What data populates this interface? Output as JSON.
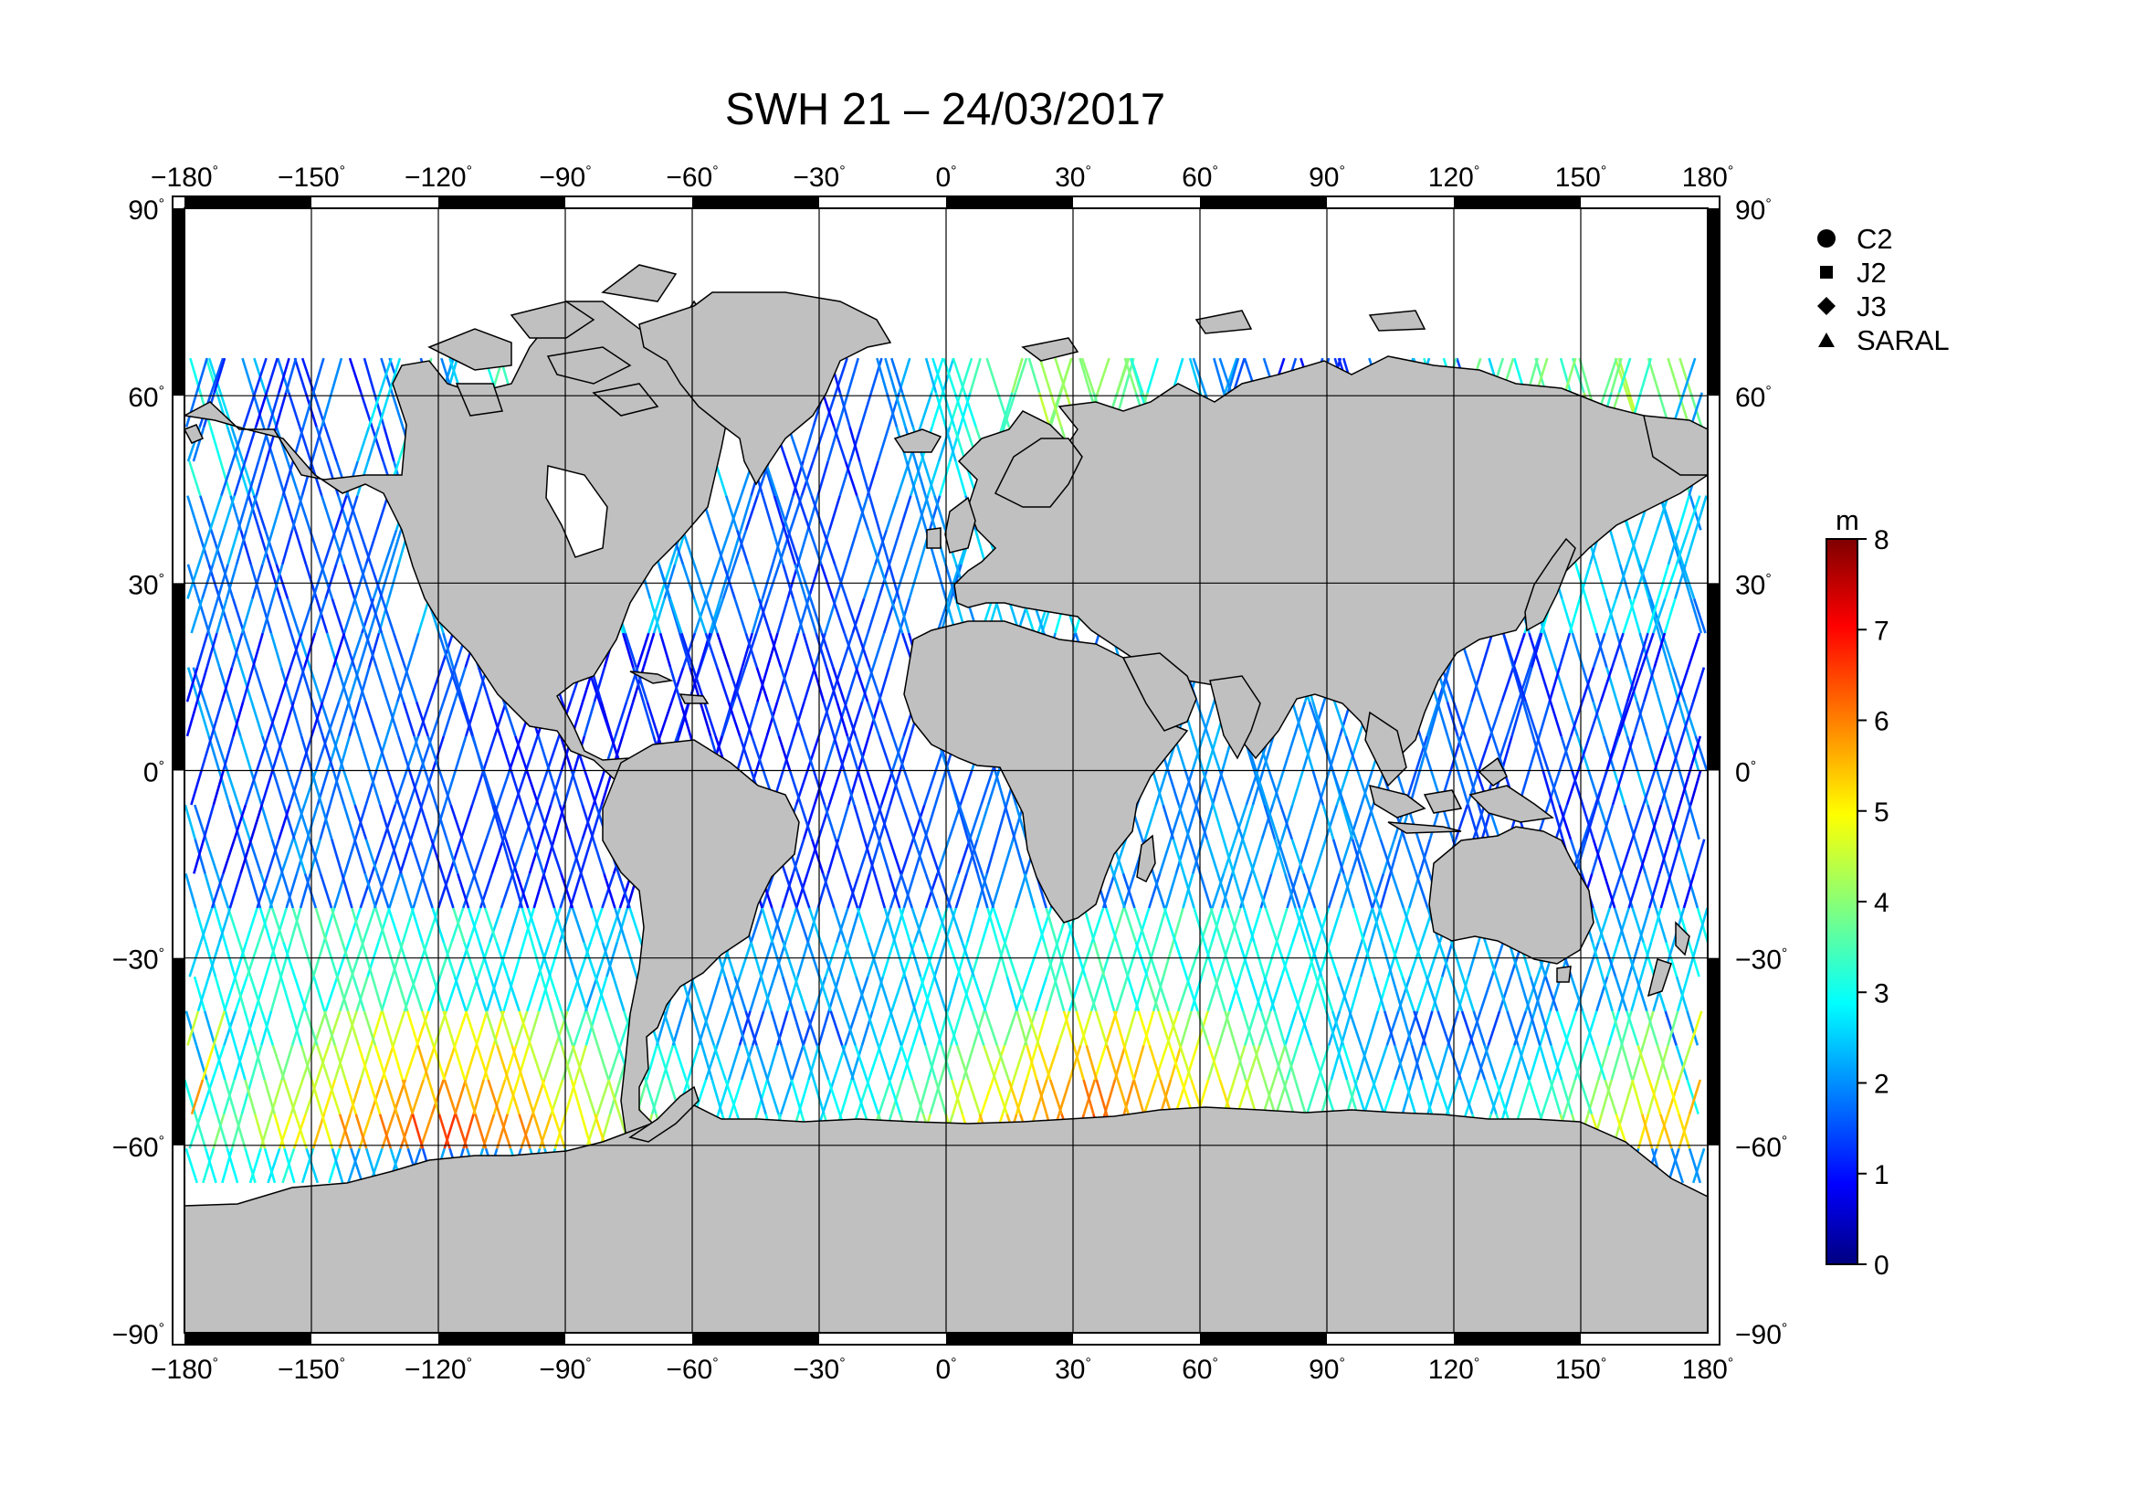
{
  "title": "SWH 21 – 24/03/2017",
  "lon_ticks": [
    "−180",
    "−150",
    "−120",
    "−90",
    "−60",
    "−30",
    "0",
    "30",
    "60",
    "90",
    "120",
    "150",
    "180"
  ],
  "lat_ticks": [
    "90",
    "60",
    "30",
    "0",
    "−30",
    "−60",
    "−90"
  ],
  "degree_symbol": "°",
  "legend": [
    {
      "symbol": "circle",
      "label": "C2"
    },
    {
      "symbol": "square",
      "label": "J2"
    },
    {
      "symbol": "diamond",
      "label": "J3"
    },
    {
      "symbol": "triangle",
      "label": "SARAL"
    }
  ],
  "colorbar": {
    "unit": "m",
    "ticks": [
      "0",
      "1",
      "2",
      "3",
      "4",
      "5",
      "6",
      "7",
      "8"
    ],
    "min": 0,
    "max": 8,
    "colormap": "jet"
  },
  "colors": {
    "land": "#c0c0c0",
    "ocean": "#ffffff",
    "grid": "#000000"
  }
}
